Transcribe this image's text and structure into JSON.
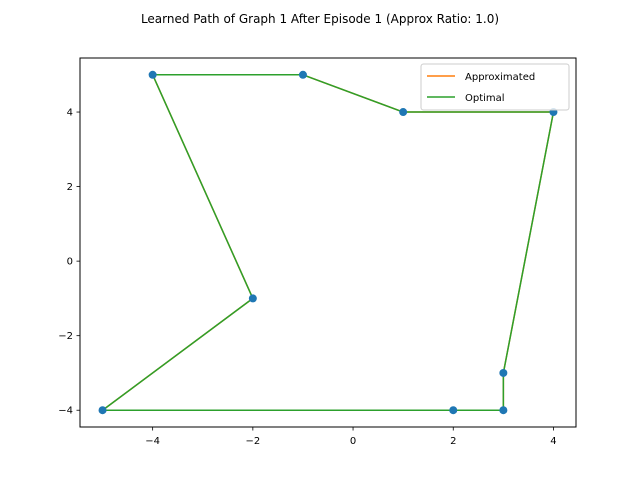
{
  "chart_data": {
    "type": "line",
    "title": "Learned Path of Graph 1 After Episode 1 (Approx Ratio: 1.0)",
    "xlabel": "",
    "ylabel": "",
    "xlim": [
      -5.45,
      4.45
    ],
    "ylim": [
      -4.45,
      5.45
    ],
    "xticks": [
      -4,
      -2,
      0,
      2,
      4
    ],
    "yticks": [
      -4,
      -2,
      0,
      2,
      4
    ],
    "xtick_labels": [
      "−4",
      "−2",
      "0",
      "2",
      "4"
    ],
    "ytick_labels": [
      "−4",
      "−2",
      "0",
      "2",
      "4"
    ],
    "grid": false,
    "legend_position": "top-right",
    "points": {
      "color": "#1f77b4",
      "x": [
        -4,
        -1,
        1,
        4,
        3,
        3,
        2,
        -5,
        -2
      ],
      "y": [
        5,
        5,
        4,
        4,
        -3,
        -4,
        -4,
        -4,
        -1
      ]
    },
    "series": [
      {
        "name": "Approximated",
        "color": "#ff7f0e",
        "x": [
          -4,
          -1,
          1,
          4,
          3,
          3,
          2,
          -5,
          -2,
          -4
        ],
        "y": [
          5,
          5,
          4,
          4,
          -3,
          -4,
          -4,
          -4,
          -1,
          5
        ]
      },
      {
        "name": "Optimal",
        "color": "#2ca02c",
        "x": [
          -4,
          -1,
          1,
          4,
          3,
          3,
          2,
          -5,
          -2,
          -4
        ],
        "y": [
          5,
          5,
          4,
          4,
          -3,
          -4,
          -4,
          -4,
          -1,
          5
        ]
      }
    ]
  }
}
